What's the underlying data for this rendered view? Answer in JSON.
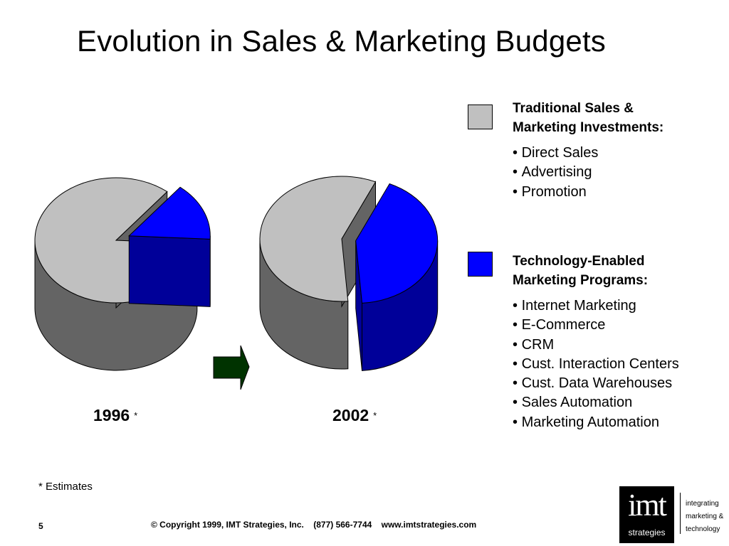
{
  "title": "Evolution in Sales & Marketing Budgets",
  "colors": {
    "traditional_top": "#c0c0c0",
    "traditional_side": "#646464",
    "technology_top": "#0000ff",
    "technology_side": "#000099",
    "arrow": "#003300"
  },
  "chart_data": [
    {
      "type": "pie",
      "title": "1996",
      "title_note": "*",
      "slices": [
        {
          "name": "Traditional Sales & Marketing Investments",
          "value": 85
        },
        {
          "name": "Technology-Enabled Marketing Programs",
          "value": 15
        }
      ]
    },
    {
      "type": "pie",
      "title": "2002",
      "title_note": "*",
      "slices": [
        {
          "name": "Traditional Sales & Marketing Investments",
          "value": 58
        },
        {
          "name": "Technology-Enabled Marketing Programs",
          "value": 42
        }
      ]
    }
  ],
  "legend": {
    "traditional": {
      "title_line1": "Traditional Sales &",
      "title_line2": "Marketing Investments:",
      "items": [
        "Direct Sales",
        "Advertising",
        "Promotion"
      ]
    },
    "technology": {
      "title_line1": "Technology-Enabled",
      "title_line2": "Marketing Programs:",
      "items": [
        "Internet Marketing",
        "E-Commerce",
        "CRM",
        "Cust. Interaction Centers",
        "Cust. Data Warehouses",
        "Sales Automation",
        "Marketing Automation"
      ]
    }
  },
  "footnote": "* Estimates",
  "page_number": "5",
  "copyright": "© Copyright 1999, IMT Strategies, Inc.    (877) 566-7744    www.imtstrategies.com",
  "logo": {
    "big": "imt",
    "small": "strategies",
    "tagline": [
      "integrating",
      "marketing &",
      "technology"
    ]
  }
}
